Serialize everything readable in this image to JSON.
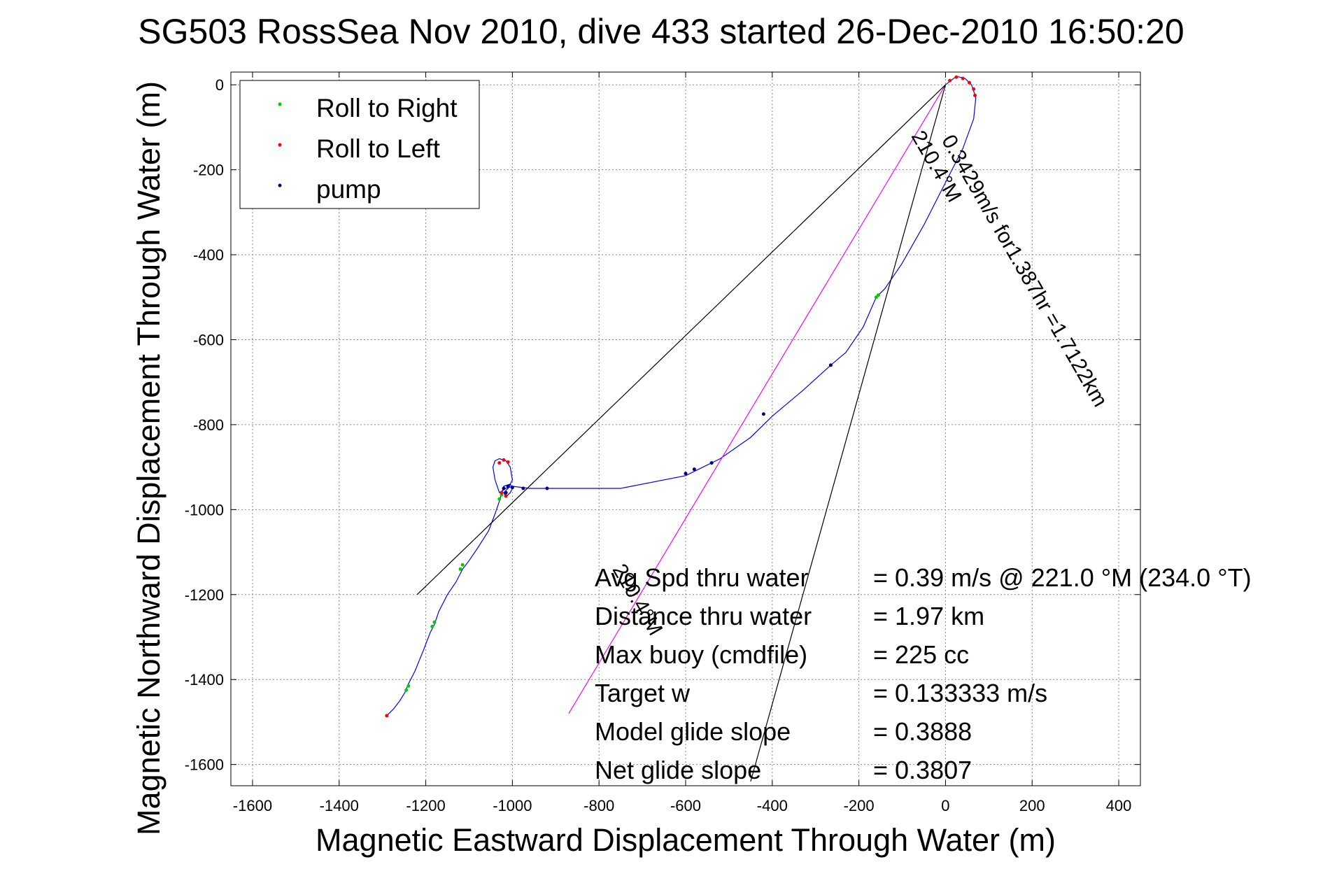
{
  "chart_data": {
    "type": "line",
    "title": "SG503 RossSea Nov 2010, dive 433 started 26-Dec-2010 16:50:20",
    "xlabel": "Magnetic Eastward Displacement Through Water (m)",
    "ylabel": "Magnetic Northward Displacement Through Water (m)",
    "xlim": [
      -1650,
      450
    ],
    "ylim": [
      -1650,
      30
    ],
    "xticks": [
      -1600,
      -1400,
      -1200,
      -1000,
      -800,
      -600,
      -400,
      -200,
      0,
      200,
      400
    ],
    "yticks": [
      0,
      -200,
      -400,
      -600,
      -800,
      -1000,
      -1200,
      -1400,
      -1600
    ],
    "grid": true,
    "legend_position": "top-left",
    "legend": [
      {
        "label": "Roll to Right",
        "color": "#00cc00"
      },
      {
        "label": "Roll to Left",
        "color": "#ff0000"
      },
      {
        "label": "pump",
        "color": "#000080"
      }
    ],
    "series": [
      {
        "color": "#0000ff",
        "x": [
          0,
          25,
          45,
          60,
          70,
          65,
          40,
          0,
          -50,
          -100,
          -140,
          -160,
          -190,
          -230,
          -265,
          -330,
          -400,
          -450,
          -520,
          -560,
          -600,
          -750,
          -920,
          -960,
          -1000,
          -1015,
          -1030,
          -1040,
          -1045,
          -1040,
          -1030,
          -1015,
          -1005,
          -1000,
          -1010,
          -1020,
          -1015,
          -1005,
          -1000,
          -1005,
          -1020,
          -1030,
          -1040,
          -1055,
          -1080,
          -1100,
          -1115,
          -1130,
          -1150,
          -1170,
          -1180,
          -1190,
          -1205,
          -1225,
          -1240,
          -1248,
          -1260,
          -1275,
          -1290
        ],
        "y": [
          0,
          20,
          15,
          0,
          -30,
          -80,
          -150,
          -230,
          -330,
          -420,
          -480,
          -500,
          -570,
          -630,
          -660,
          -720,
          -780,
          -830,
          -880,
          -900,
          -920,
          -950,
          -950,
          -950,
          -945,
          -950,
          -960,
          -930,
          -900,
          -885,
          -880,
          -885,
          -900,
          -930,
          -950,
          -960,
          -970,
          -960,
          -950,
          -940,
          -945,
          -980,
          -1010,
          -1050,
          -1090,
          -1120,
          -1140,
          -1170,
          -1200,
          -1240,
          -1270,
          -1290,
          -1330,
          -1380,
          -1410,
          -1430,
          -1450,
          -1470,
          -1485
        ]
      },
      {
        "color": "#ff00ff",
        "x": [
          0,
          -870
        ],
        "y": [
          0,
          -1480
        ]
      },
      {
        "color": "#000000",
        "x": [
          0,
          -1220
        ],
        "y": [
          0,
          -1200
        ]
      },
      {
        "color": "#000000",
        "x": [
          0,
          -450
        ],
        "y": [
          0,
          -1640
        ]
      }
    ],
    "annotations": [
      {
        "text": "0.3429m/s for1.387hr =1.7122km",
        "x": -10,
        "y": -130,
        "angle": 60
      },
      {
        "text": "210.4°M",
        "x": -80,
        "y": -120,
        "angle": 60
      },
      {
        "text": "210.4°M",
        "x": -770,
        "y": -1140,
        "angle": 60
      }
    ],
    "stats": [
      {
        "label": "Avg Spd thru water",
        "value": "=  0.39 m/s @ 221.0 °M (234.0 °T)"
      },
      {
        "label": "Distance thru water",
        "value": "=  1.97 km"
      },
      {
        "label": "Max buoy (cmdfile)",
        "value": "= 225 cc"
      },
      {
        "label": "Target w",
        "value": "= 0.133333 m/s"
      },
      {
        "label": "Model glide slope",
        "value": "= 0.3888"
      },
      {
        "label": "Net glide slope",
        "value": "= 0.3807"
      }
    ],
    "markers": {
      "roll_right": {
        "color": "#00cc00",
        "x": [
          -160,
          -155,
          -1030,
          -1025,
          -1120,
          -1115,
          -1185,
          -1180,
          -1245,
          -1240
        ],
        "y": [
          -500,
          -495,
          -975,
          -965,
          -1140,
          -1130,
          -1275,
          -1265,
          -1425,
          -1415
        ]
      },
      "roll_left": {
        "color": "#ff0000",
        "x": [
          10,
          25,
          40,
          55,
          65,
          68,
          -1030,
          -1020,
          -1010,
          -1025,
          -1015,
          -1290
        ],
        "y": [
          10,
          18,
          15,
          5,
          -10,
          -25,
          -890,
          -883,
          -888,
          -960,
          -968,
          -1485
        ]
      },
      "pump": {
        "color": "#000080",
        "x": [
          -265,
          -420,
          -540,
          -580,
          -600,
          -920,
          -975,
          -1000,
          -1010,
          -1020,
          -1015
        ],
        "y": [
          -660,
          -775,
          -890,
          -905,
          -915,
          -950,
          -950,
          -948,
          -945,
          -950,
          -960
        ]
      }
    }
  }
}
